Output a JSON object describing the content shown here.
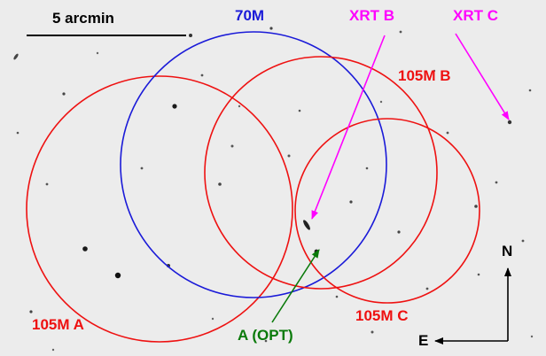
{
  "scale_bar": {
    "label": "5 arcmin"
  },
  "fields": {
    "field_70m": {
      "label": "70M",
      "color": "#1a1ad8"
    },
    "field_105m_a": {
      "label": "105M A",
      "color": "#ee1111"
    },
    "field_105m_b": {
      "label": "105M B",
      "color": "#ee1111"
    },
    "field_105m_c": {
      "label": "105M C",
      "color": "#ee1111"
    }
  },
  "sources": {
    "xrt_b": {
      "label": "XRT B",
      "color": "#ff00ff"
    },
    "xrt_c": {
      "label": "XRT C",
      "color": "#ff00ff"
    },
    "optical_a": {
      "label": "A (OPT)",
      "color": "#0a7a0a"
    }
  },
  "compass": {
    "north": "N",
    "east": "E"
  }
}
